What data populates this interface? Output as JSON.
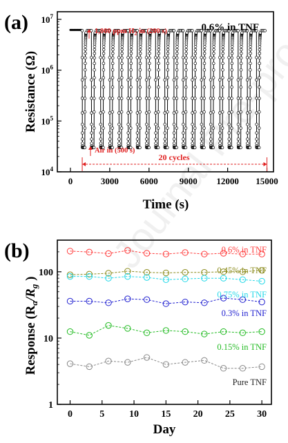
{
  "watermark": "Journal Pre-proof",
  "chart_data": [
    {
      "type": "scatter",
      "panel_label": "(a)",
      "annotation_top_right": "0.6% in TNF",
      "annotation_h2": "1,000 ppm H",
      "annotation_h2_sub": "2",
      "annotation_h2_tail": " in (200 s)",
      "annotation_air": "Air in (500 s)",
      "annotation_cycles": "20 cycles",
      "xlabel": "Time (s)",
      "ylabel": "Resistance (Ω)",
      "xlim": [
        -1000,
        15500
      ],
      "xticks": [
        0,
        3000,
        6000,
        9000,
        12000,
        15000
      ],
      "ylog_range_exp": [
        4,
        7.15
      ],
      "yticks": [
        {
          "base": "10",
          "exp": "4",
          "value": 10000
        },
        {
          "base": "10",
          "exp": "5",
          "value": 100000
        },
        {
          "base": "10",
          "exp": "6",
          "value": 1000000
        },
        {
          "base": "10",
          "exp": "7",
          "value": 10000000
        }
      ],
      "cycles_span": [
        900,
        15000
      ],
      "baseline_before_first_cycle": {
        "x_start": 0,
        "x_end": 900,
        "resistance": 6200000
      },
      "cycle_period_s": 700,
      "cycle_h2_duration_s": 200,
      "cycle_air_duration_s": 500,
      "cycle_count": 20,
      "cycle_max_resistance": 6000000,
      "cycle_min_resistance": 30000,
      "legend": "none",
      "grid": false
    },
    {
      "type": "line",
      "panel_label": "(b)",
      "xlabel": "Day",
      "ylabel": "Response (R",
      "ylabel_a": "a",
      "ylabel_mid": "/R",
      "ylabel_g": "g",
      "ylabel_close": " )",
      "xlim": [
        -2,
        31.5
      ],
      "xticks": [
        0,
        5,
        10,
        15,
        20,
        25,
        30
      ],
      "ylim_log": [
        1,
        300
      ],
      "yticks": [
        1,
        10,
        100
      ],
      "x": [
        0,
        3,
        6,
        9,
        12,
        15,
        18,
        21,
        24,
        27,
        30
      ],
      "series": [
        {
          "name": "0.6% in TNF",
          "color": "#ff3b3b",
          "values": [
            205,
            198,
            188,
            210,
            190,
            185,
            195,
            185,
            190,
            185,
            185
          ]
        },
        {
          "name": "0.45% in TNF",
          "color": "#8a8a1a",
          "values": [
            90,
            92,
            95,
            102,
            98,
            96,
            98,
            98,
            100,
            100,
            105
          ]
        },
        {
          "name": "0.75% in TNF",
          "color": "#22d8e8",
          "values": [
            85,
            85,
            80,
            85,
            82,
            76,
            78,
            80,
            80,
            76,
            72
          ]
        },
        {
          "name": "0.3% in TNF",
          "color": "#2020d0",
          "values": [
            36,
            36,
            34,
            39,
            38,
            33,
            35,
            34,
            40,
            38,
            35
          ]
        },
        {
          "name": "0.15% in TNF",
          "color": "#22bb22",
          "values": [
            12.5,
            11,
            15.5,
            14,
            12,
            13,
            12.5,
            11.5,
            12.5,
            12,
            12.5
          ]
        },
        {
          "name": "Pure TNF",
          "color": "#888888",
          "values": [
            4.1,
            3.7,
            4.5,
            4.3,
            5.1,
            4.0,
            4.3,
            4.6,
            3.5,
            3.5,
            3.7
          ]
        }
      ],
      "legend": "inline-right",
      "grid": false
    }
  ]
}
